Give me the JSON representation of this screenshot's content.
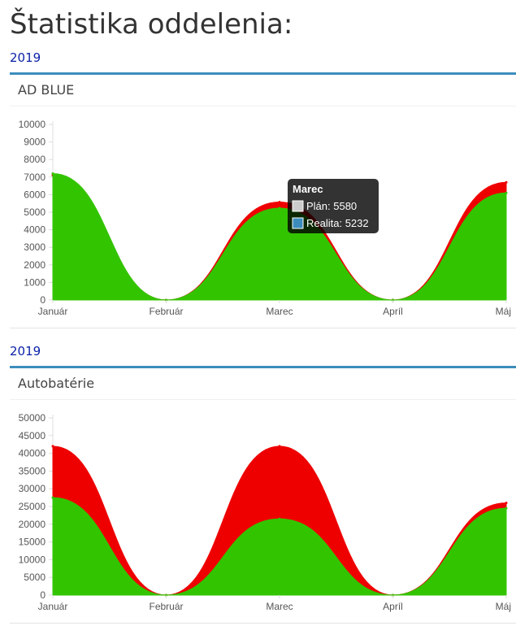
{
  "page": {
    "title": "Štatistika oddelenia:"
  },
  "sections": [
    {
      "year": "2019",
      "title": "AD BLUE"
    },
    {
      "year": "2019",
      "title": "Autobatérie"
    }
  ],
  "tooltip": {
    "title": "Marec",
    "rows": [
      {
        "label": "Plán: 5580",
        "color": "#cccccc"
      },
      {
        "label": "Realita: 5232",
        "color": "#3c8dbc"
      }
    ]
  },
  "chart_data": [
    {
      "type": "area",
      "categories": [
        "Január",
        "Február",
        "Marec",
        "Apríl",
        "Máj"
      ],
      "series": [
        {
          "name": "Plán",
          "values": [
            7100,
            0,
            5580,
            0,
            6700
          ],
          "color": "#ee0000"
        },
        {
          "name": "Realita",
          "values": [
            7200,
            0,
            5232,
            0,
            6100
          ],
          "color": "#33c400"
        }
      ],
      "ylim": [
        0,
        10000
      ],
      "yticks": [
        0,
        1000,
        2000,
        3000,
        4000,
        5000,
        6000,
        7000,
        8000,
        9000,
        10000
      ],
      "ytick_labels": [
        "0",
        "1000",
        "2000",
        "3000",
        "4000",
        "5000",
        "6000",
        "7000",
        "8000",
        "9000",
        "10000"
      ],
      "grid": false
    },
    {
      "type": "area",
      "categories": [
        "Január",
        "Február",
        "Marec",
        "Apríl",
        "Máj"
      ],
      "series": [
        {
          "name": "Plán",
          "values": [
            42000,
            0,
            42000,
            0,
            26000
          ],
          "color": "#ee0000"
        },
        {
          "name": "Realita",
          "values": [
            27500,
            0,
            21500,
            0,
            24500
          ],
          "color": "#33c400"
        }
      ],
      "ylim": [
        0,
        50000
      ],
      "yticks": [
        0,
        5000,
        10000,
        15000,
        20000,
        25000,
        30000,
        35000,
        40000,
        45000,
        50000
      ],
      "ytick_labels": [
        "0",
        "5000",
        "10000",
        "15000",
        "20000",
        "25000",
        "30000",
        "35000",
        "40000",
        "45000",
        "50000"
      ],
      "grid": false
    }
  ]
}
